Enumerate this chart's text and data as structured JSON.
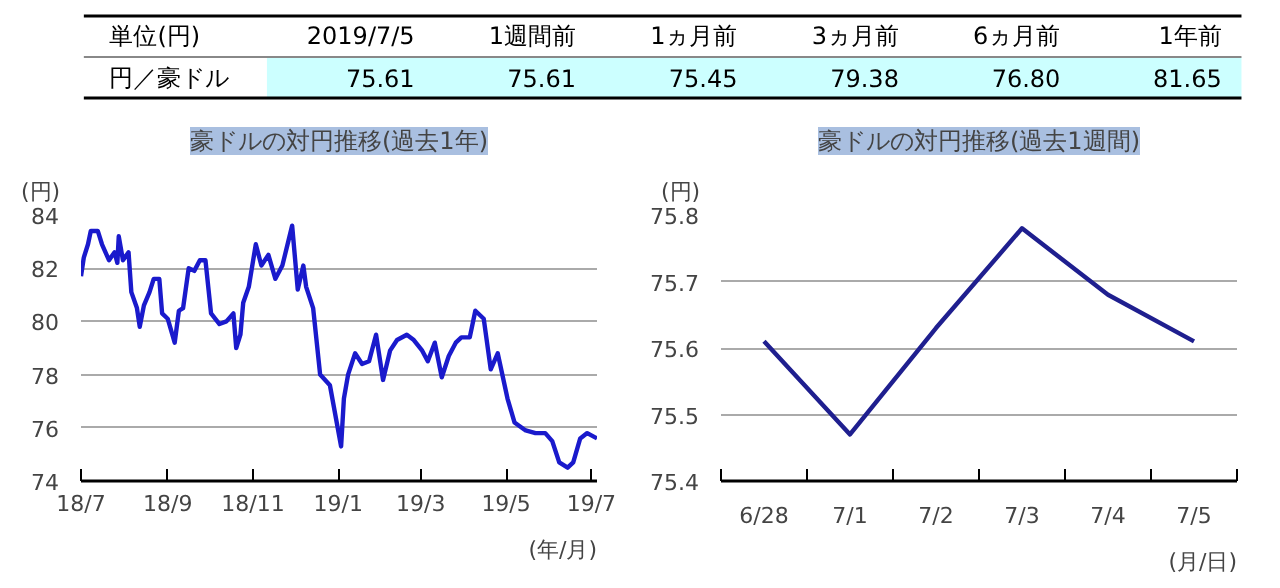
{
  "chart_data": [
    {
      "type": "other",
      "legend_title": "単位(円)",
      "categories": [
        "2019/7/5",
        "1週間前",
        "1ヵ月前",
        "3ヵ月前",
        "6ヵ月前",
        "1年前"
      ],
      "series": [
        {
          "name": "円／豪ドル",
          "values": [
            75.61,
            75.61,
            75.45,
            79.38,
            76.8,
            81.65
          ],
          "value_labels": [
            "75.61",
            "75.61",
            "75.45",
            "79.38",
            "76.80",
            "81.65"
          ]
        }
      ],
      "data_labels": true
    },
    {
      "type": "line",
      "title": "豪ドルの対円推移(過去1年)",
      "ylabel": "(円)",
      "xlabel": "(年/月)",
      "x": [
        "2018-07-01",
        "2018-07-03",
        "2018-07-06",
        "2018-07-08",
        "2018-07-13",
        "2018-07-16",
        "2018-07-21",
        "2018-07-25",
        "2018-07-27",
        "2018-07-28",
        "2018-07-31",
        "2018-08-04",
        "2018-08-06",
        "2018-08-10",
        "2018-08-12",
        "2018-08-15",
        "2018-08-19",
        "2018-08-22",
        "2018-08-26",
        "2018-08-28",
        "2018-09-01",
        "2018-09-06",
        "2018-09-09",
        "2018-09-12",
        "2018-09-16",
        "2018-09-20",
        "2018-09-24",
        "2018-09-28",
        "2018-10-02",
        "2018-10-08",
        "2018-10-13",
        "2018-10-18",
        "2018-10-20",
        "2018-10-23",
        "2018-10-25",
        "2018-10-29",
        "2018-11-03",
        "2018-11-07",
        "2018-11-12",
        "2018-11-17",
        "2018-11-22",
        "2018-11-29",
        "2018-12-03",
        "2018-12-07",
        "2018-12-09",
        "2018-12-14",
        "2018-12-19",
        "2018-12-26",
        "2019-01-03",
        "2019-01-05",
        "2019-01-08",
        "2019-01-13",
        "2019-01-18",
        "2019-01-23",
        "2019-01-28",
        "2019-02-02",
        "2019-02-07",
        "2019-02-12",
        "2019-02-19",
        "2019-02-24",
        "2019-03-02",
        "2019-03-06",
        "2019-03-11",
        "2019-03-16",
        "2019-03-21",
        "2019-03-26",
        "2019-03-30",
        "2019-04-05",
        "2019-04-09",
        "2019-04-15",
        "2019-04-20",
        "2019-04-25",
        "2019-05-02",
        "2019-05-07",
        "2019-05-15",
        "2019-05-22",
        "2019-05-29",
        "2019-06-03",
        "2019-06-08",
        "2019-06-14",
        "2019-06-18",
        "2019-06-23",
        "2019-06-28",
        "2019-07-05"
      ],
      "series": [
        {
          "color": "#1a1acc",
          "values": [
            81.7,
            82.4,
            82.9,
            83.4,
            83.4,
            82.9,
            82.3,
            82.6,
            82.2,
            83.2,
            82.3,
            82.6,
            81.1,
            80.5,
            79.8,
            80.6,
            81.1,
            81.6,
            81.6,
            80.3,
            80.1,
            79.2,
            80.4,
            80.5,
            82.0,
            81.9,
            82.3,
            82.3,
            80.3,
            79.9,
            80.0,
            80.3,
            79.0,
            79.5,
            80.7,
            81.3,
            82.9,
            82.1,
            82.5,
            81.6,
            82.1,
            83.6,
            81.2,
            82.1,
            81.3,
            80.5,
            78.0,
            77.6,
            75.3,
            77.1,
            78.0,
            78.8,
            78.4,
            78.5,
            79.5,
            77.8,
            78.9,
            79.3,
            79.5,
            79.3,
            78.9,
            78.5,
            79.2,
            77.9,
            78.7,
            79.2,
            79.4,
            79.4,
            80.4,
            80.1,
            78.2,
            78.8,
            77.1,
            76.2,
            75.9,
            75.8,
            75.8,
            75.5,
            74.7,
            74.5,
            74.7,
            75.6,
            75.8,
            75.6
          ]
        }
      ],
      "xlim": [
        "2018-07-01",
        "2019-07-05"
      ],
      "xticks": [
        {
          "value": "2018-07-01",
          "label": "18/7"
        },
        {
          "value": "2018-09-01",
          "label": "18/9"
        },
        {
          "value": "2018-11-01",
          "label": "18/11"
        },
        {
          "value": "2019-01-01",
          "label": "19/1"
        },
        {
          "value": "2019-03-01",
          "label": "19/3"
        },
        {
          "value": "2019-05-01",
          "label": "19/5"
        },
        {
          "value": "2019-07-01",
          "label": "19/7"
        }
      ],
      "ylim": [
        74,
        84
      ],
      "yticks": [
        74,
        76,
        78,
        80,
        82,
        84
      ],
      "grid": "y",
      "marker": "none",
      "line_style": "solid"
    },
    {
      "type": "line",
      "title": "豪ドルの対円推移(過去1週間)",
      "ylabel": "(円)",
      "xlabel": "(月/日)",
      "categories": [
        "6/28",
        "7/1",
        "7/2",
        "7/3",
        "7/4",
        "7/5"
      ],
      "series": [
        {
          "color": "#1f1f8f",
          "values": [
            75.61,
            75.47,
            75.63,
            75.78,
            75.68,
            75.61
          ]
        }
      ],
      "ylim": [
        75.4,
        75.8
      ],
      "yticks": [
        75.4,
        75.5,
        75.6,
        75.7,
        75.8
      ],
      "grid": "y",
      "marker": "none",
      "line_style": "solid"
    }
  ]
}
